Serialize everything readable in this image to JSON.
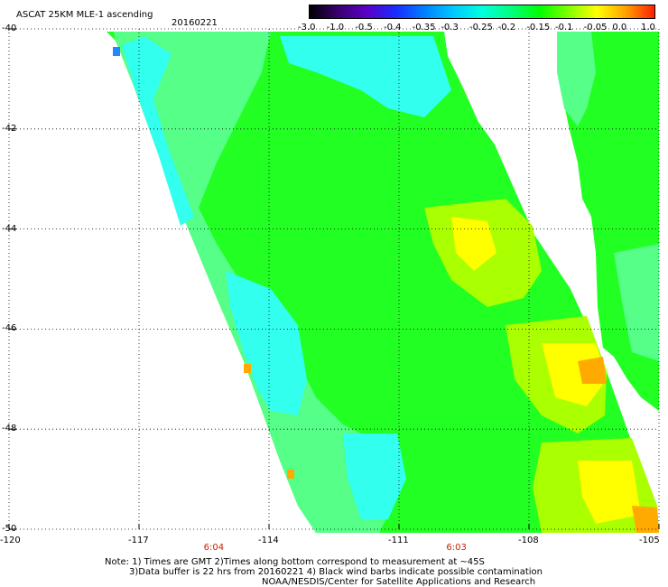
{
  "header": {
    "title": "ASCAT 25KM MLE-1 ascending",
    "date": "20160221"
  },
  "colorbar": {
    "labels": [
      "-3.0",
      "-1.0",
      "-0.5",
      "-0.4",
      "-0.35",
      "-0.3",
      "-0.25",
      "-0.2",
      "-0.15",
      "-0.1",
      "-0.05",
      "0.0",
      "1.0"
    ],
    "colors": [
      "#000000",
      "#3a0070",
      "#5a00c8",
      "#1a2cff",
      "#0080ff",
      "#00c8ff",
      "#00ffe0",
      "#00ff80",
      "#00ff00",
      "#80ff00",
      "#ffff00",
      "#ffa000",
      "#ff2000"
    ]
  },
  "map": {
    "lat_labels": [
      "-40",
      "-42",
      "-44",
      "-46",
      "-48",
      "-50"
    ],
    "lon_labels": [
      "-120",
      "-117",
      "-114",
      "-111",
      "-108",
      "-105"
    ],
    "lat_range": [
      -50,
      -40
    ],
    "lon_range": [
      -120,
      -105
    ],
    "time_labels": [
      {
        "label": "6:04",
        "lon": -115.3
      },
      {
        "label": "6:03",
        "lon": -109.7
      }
    ],
    "swath_colors": {
      "cyan": "#33ffee",
      "light_green": "#55ff88",
      "green": "#22ff22",
      "yellow_green": "#aaff00",
      "yellow": "#ffff00",
      "orange": "#ffaa00",
      "blue": "#2288ff"
    }
  },
  "notes": {
    "line1": "Note: 1) Times are GMT 2)Times along bottom correspond to measurement at ~45S",
    "line2": "3)Data buffer is 22 hrs from 20160221 4) Black wind barbs indicate possible contamination",
    "line3": "NOAA/NESDIS/Center for Satellite Applications and Research"
  }
}
